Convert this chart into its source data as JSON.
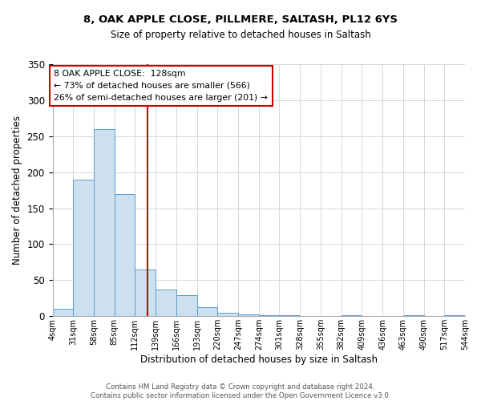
{
  "title": "8, OAK APPLE CLOSE, PILLMERE, SALTASH, PL12 6YS",
  "subtitle": "Size of property relative to detached houses in Saltash",
  "xlabel": "Distribution of detached houses by size in Saltash",
  "ylabel": "Number of detached properties",
  "bin_labels": [
    "4sqm",
    "31sqm",
    "58sqm",
    "85sqm",
    "112sqm",
    "139sqm",
    "166sqm",
    "193sqm",
    "220sqm",
    "247sqm",
    "274sqm",
    "301sqm",
    "328sqm",
    "355sqm",
    "382sqm",
    "409sqm",
    "436sqm",
    "463sqm",
    "490sqm",
    "517sqm",
    "544sqm"
  ],
  "bin_edges": [
    4,
    31,
    58,
    85,
    112,
    139,
    166,
    193,
    220,
    247,
    274,
    301,
    328,
    355,
    382,
    409,
    436,
    463,
    490,
    517,
    544
  ],
  "bar_heights": [
    10,
    190,
    260,
    170,
    65,
    37,
    29,
    13,
    5,
    2,
    1,
    1,
    0,
    0,
    1,
    0,
    0,
    1,
    0,
    1
  ],
  "bar_color": "#cce0f0",
  "bar_edgecolor": "#5b9bd5",
  "vline_x": 128,
  "vline_color": "#cc0000",
  "annotation_line1": "8 OAK APPLE CLOSE:  128sqm",
  "annotation_line2": "← 73% of detached houses are smaller (566)",
  "annotation_line3": "26% of semi-detached houses are larger (201) →",
  "annotation_box_color": "#ffffff",
  "annotation_box_edgecolor": "#cc0000",
  "ylim": [
    0,
    350
  ],
  "yticks": [
    0,
    50,
    100,
    150,
    200,
    250,
    300,
    350
  ],
  "footer_line1": "Contains HM Land Registry data © Crown copyright and database right 2024.",
  "footer_line2": "Contains public sector information licensed under the Open Government Licence v3.0.",
  "background_color": "#ffffff",
  "grid_color": "#d0d8e0"
}
